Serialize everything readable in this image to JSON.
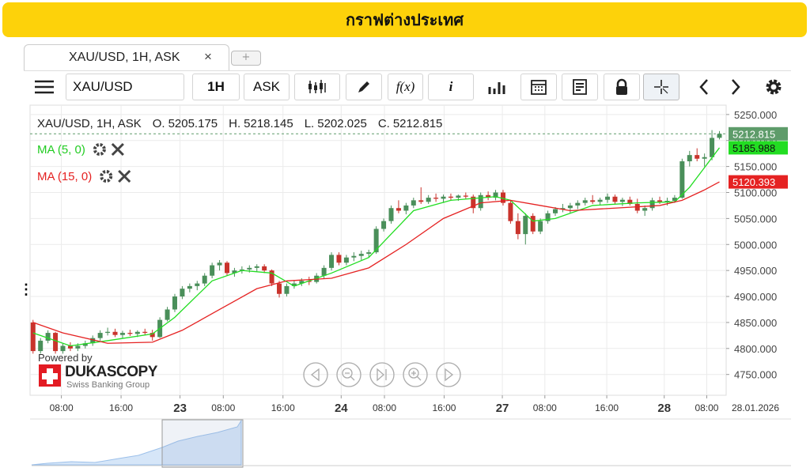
{
  "header": {
    "title": "กราฟต่างประเทศ"
  },
  "tab": {
    "label": "XAU/USD, 1H, ASK",
    "close": "×",
    "add": "+"
  },
  "toolbar": {
    "symbol": "XAU/USD",
    "period": "1H",
    "side": "ASK",
    "function": "f(x)",
    "info": "i"
  },
  "branding": {
    "powered": "Powered by",
    "name": "DUKASCOPY",
    "tagline": "Swiss Banking Group"
  },
  "chart_data": {
    "type": "candlestick",
    "legend_title": "XAU/USD, 1H, ASK",
    "ohlc_labels": [
      "O.",
      "H.",
      "L.",
      "C."
    ],
    "date_label": "28.01.2026",
    "grid": true,
    "xlim": [
      -0.4,
      92.9
    ],
    "ylim": [
      4710,
      5268
    ],
    "yticks": [
      {
        "value": 4750,
        "label": "4750.000"
      },
      {
        "value": 4800,
        "label": "4800.000"
      },
      {
        "value": 4850,
        "label": "4850.000"
      },
      {
        "value": 4900,
        "label": "4900.000"
      },
      {
        "value": 4950,
        "label": "4950.000"
      },
      {
        "value": 5000,
        "label": "5000.000"
      },
      {
        "value": 5050,
        "label": "5050.000"
      },
      {
        "value": 5100,
        "label": "5100.000"
      },
      {
        "value": 5150,
        "label": "5150.000"
      },
      {
        "value": 5200,
        "label": "5200.000"
      },
      {
        "value": 5250,
        "label": "5250.000"
      }
    ],
    "xticks": [
      {
        "value": 3.8,
        "label": "08:00"
      },
      {
        "value": 11.8,
        "label": "16:00"
      },
      {
        "value": 19.7,
        "label": "23"
      },
      {
        "value": 25.5,
        "label": "08:00"
      },
      {
        "value": 33.5,
        "label": "16:00"
      },
      {
        "value": 41.3,
        "label": "24"
      },
      {
        "value": 47.1,
        "label": "08:00"
      },
      {
        "value": 55.1,
        "label": "16:00"
      },
      {
        "value": 62.9,
        "label": "27"
      },
      {
        "value": 68.6,
        "label": "08:00"
      },
      {
        "value": 76.9,
        "label": "16:00"
      },
      {
        "value": 84.6,
        "label": "28"
      },
      {
        "value": 90.3,
        "label": "08:00"
      }
    ],
    "series": [
      {
        "name": "XAU/USD, 1H, ASK",
        "type": "candlestick",
        "up_color": "#4a8f5a",
        "down_color": "#c9332c",
        "label_color": "#5e9c6a",
        "ohlc": [
          [
            4850,
            4855,
            4790,
            4795
          ],
          [
            4795,
            4820,
            4790,
            4815
          ],
          [
            4815,
            4835,
            4810,
            4830
          ],
          [
            4830,
            4832,
            4790,
            4795
          ],
          [
            4795,
            4810,
            4790,
            4805
          ],
          [
            4805,
            4812,
            4795,
            4800
          ],
          [
            4800,
            4810,
            4795,
            4805
          ],
          [
            4805,
            4815,
            4800,
            4810
          ],
          [
            4810,
            4825,
            4805,
            4820
          ],
          [
            4820,
            4835,
            4815,
            4830
          ],
          [
            4830,
            4840,
            4825,
            4832
          ],
          [
            4832,
            4838,
            4822,
            4826
          ],
          [
            4826,
            4834,
            4820,
            4830
          ],
          [
            4830,
            4836,
            4824,
            4828
          ],
          [
            4828,
            4835,
            4822,
            4832
          ],
          [
            4832,
            4838,
            4826,
            4830
          ],
          [
            4830,
            4836,
            4815,
            4822
          ],
          [
            4822,
            4860,
            4820,
            4855
          ],
          [
            4855,
            4880,
            4852,
            4875
          ],
          [
            4875,
            4905,
            4870,
            4900
          ],
          [
            4900,
            4920,
            4895,
            4915
          ],
          [
            4915,
            4925,
            4908,
            4920
          ],
          [
            4920,
            4930,
            4912,
            4925
          ],
          [
            4925,
            4945,
            4920,
            4940
          ],
          [
            4940,
            4965,
            4935,
            4960
          ],
          [
            4960,
            4970,
            4950,
            4965
          ],
          [
            4965,
            4968,
            4940,
            4945
          ],
          [
            4945,
            4955,
            4938,
            4950
          ],
          [
            4950,
            4958,
            4944,
            4952
          ],
          [
            4952,
            4960,
            4946,
            4955
          ],
          [
            4955,
            4962,
            4948,
            4958
          ],
          [
            4958,
            4962,
            4945,
            4950
          ],
          [
            4950,
            4952,
            4920,
            4925
          ],
          [
            4925,
            4930,
            4898,
            4905
          ],
          [
            4905,
            4925,
            4900,
            4920
          ],
          [
            4920,
            4930,
            4915,
            4925
          ],
          [
            4925,
            4935,
            4920,
            4930
          ],
          [
            4930,
            4938,
            4922,
            4928
          ],
          [
            4928,
            4945,
            4925,
            4940
          ],
          [
            4940,
            4960,
            4935,
            4955
          ],
          [
            4955,
            4985,
            4950,
            4980
          ],
          [
            4980,
            4985,
            4960,
            4965
          ],
          [
            4965,
            4980,
            4960,
            4975
          ],
          [
            4975,
            4985,
            4968,
            4978
          ],
          [
            4978,
            4988,
            4970,
            4982
          ],
          [
            4982,
            4990,
            4975,
            4985
          ],
          [
            4985,
            5035,
            4982,
            5030
          ],
          [
            5030,
            5050,
            5025,
            5045
          ],
          [
            5045,
            5075,
            5040,
            5070
          ],
          [
            5070,
            5085,
            5060,
            5065
          ],
          [
            5065,
            5080,
            5058,
            5075
          ],
          [
            5075,
            5090,
            5070,
            5085
          ],
          [
            5085,
            5110,
            5078,
            5082
          ],
          [
            5082,
            5095,
            5078,
            5090
          ],
          [
            5090,
            5098,
            5082,
            5088
          ],
          [
            5088,
            5096,
            5080,
            5092
          ],
          [
            5092,
            5098,
            5085,
            5090
          ],
          [
            5090,
            5096,
            5084,
            5094
          ],
          [
            5094,
            5100,
            5088,
            5092
          ],
          [
            5092,
            5096,
            5060,
            5070
          ],
          [
            5070,
            5100,
            5065,
            5095
          ],
          [
            5095,
            5102,
            5085,
            5090
          ],
          [
            5090,
            5105,
            5085,
            5100
          ],
          [
            5100,
            5105,
            5075,
            5080
          ],
          [
            5080,
            5085,
            5040,
            5045
          ],
          [
            5045,
            5060,
            5010,
            5020
          ],
          [
            5020,
            5060,
            5000,
            5055
          ],
          [
            5055,
            5060,
            5020,
            5025
          ],
          [
            5025,
            5050,
            5020,
            5045
          ],
          [
            5045,
            5065,
            5040,
            5060
          ],
          [
            5060,
            5072,
            5055,
            5068
          ],
          [
            5068,
            5078,
            5062,
            5070
          ],
          [
            5070,
            5080,
            5060,
            5075
          ],
          [
            5075,
            5085,
            5068,
            5080
          ],
          [
            5080,
            5090,
            5075,
            5085
          ],
          [
            5085,
            5095,
            5078,
            5082
          ],
          [
            5082,
            5090,
            5076,
            5086
          ],
          [
            5086,
            5098,
            5080,
            5092
          ],
          [
            5092,
            5096,
            5078,
            5082
          ],
          [
            5082,
            5090,
            5074,
            5086
          ],
          [
            5086,
            5092,
            5075,
            5078
          ],
          [
            5078,
            5088,
            5060,
            5065
          ],
          [
            5065,
            5075,
            5055,
            5070
          ],
          [
            5070,
            5090,
            5065,
            5085
          ],
          [
            5085,
            5092,
            5078,
            5082
          ],
          [
            5082,
            5090,
            5075,
            5084
          ],
          [
            5084,
            5095,
            5080,
            5090
          ],
          [
            5090,
            5165,
            5088,
            5160
          ],
          [
            5160,
            5180,
            5150,
            5172
          ],
          [
            5172,
            5185,
            5160,
            5165
          ],
          [
            5165,
            5175,
            5150,
            5168
          ],
          [
            5168,
            5220,
            5162,
            5205
          ],
          [
            5205.175,
            5218.145,
            5202.025,
            5212.815
          ]
        ]
      },
      {
        "name": "MA (5, 0)",
        "type": "line",
        "color": "#22dd22",
        "text_color": "#22cc22",
        "x": [
          0,
          5,
          10,
          16,
          19,
          24,
          28,
          32,
          35,
          40,
          45,
          48,
          51,
          56,
          62,
          64,
          67,
          70,
          75,
          81,
          86,
          88,
          92
        ],
        "values": [
          4830,
          4805,
          4815,
          4828,
          4860,
          4930,
          4950,
          4945,
          4920,
          4945,
          4975,
          5020,
          5065,
          5085,
          5092,
          5085,
          5045,
          5050,
          5075,
          5080,
          5082,
          5110,
          5185.988
        ]
      },
      {
        "name": "MA (15, 0)",
        "type": "line",
        "color": "#e52222",
        "text_color": "#e52222",
        "x": [
          0,
          4,
          10,
          16,
          20,
          25,
          30,
          34,
          40,
          45,
          50,
          55,
          60,
          64,
          68,
          72,
          78,
          84,
          87,
          90,
          92
        ],
        "values": [
          4850,
          4830,
          4810,
          4812,
          4835,
          4875,
          4915,
          4930,
          4935,
          4955,
          5000,
          5050,
          5080,
          5085,
          5075,
          5065,
          5070,
          5075,
          5085,
          5105,
          5120.393
        ]
      }
    ]
  }
}
